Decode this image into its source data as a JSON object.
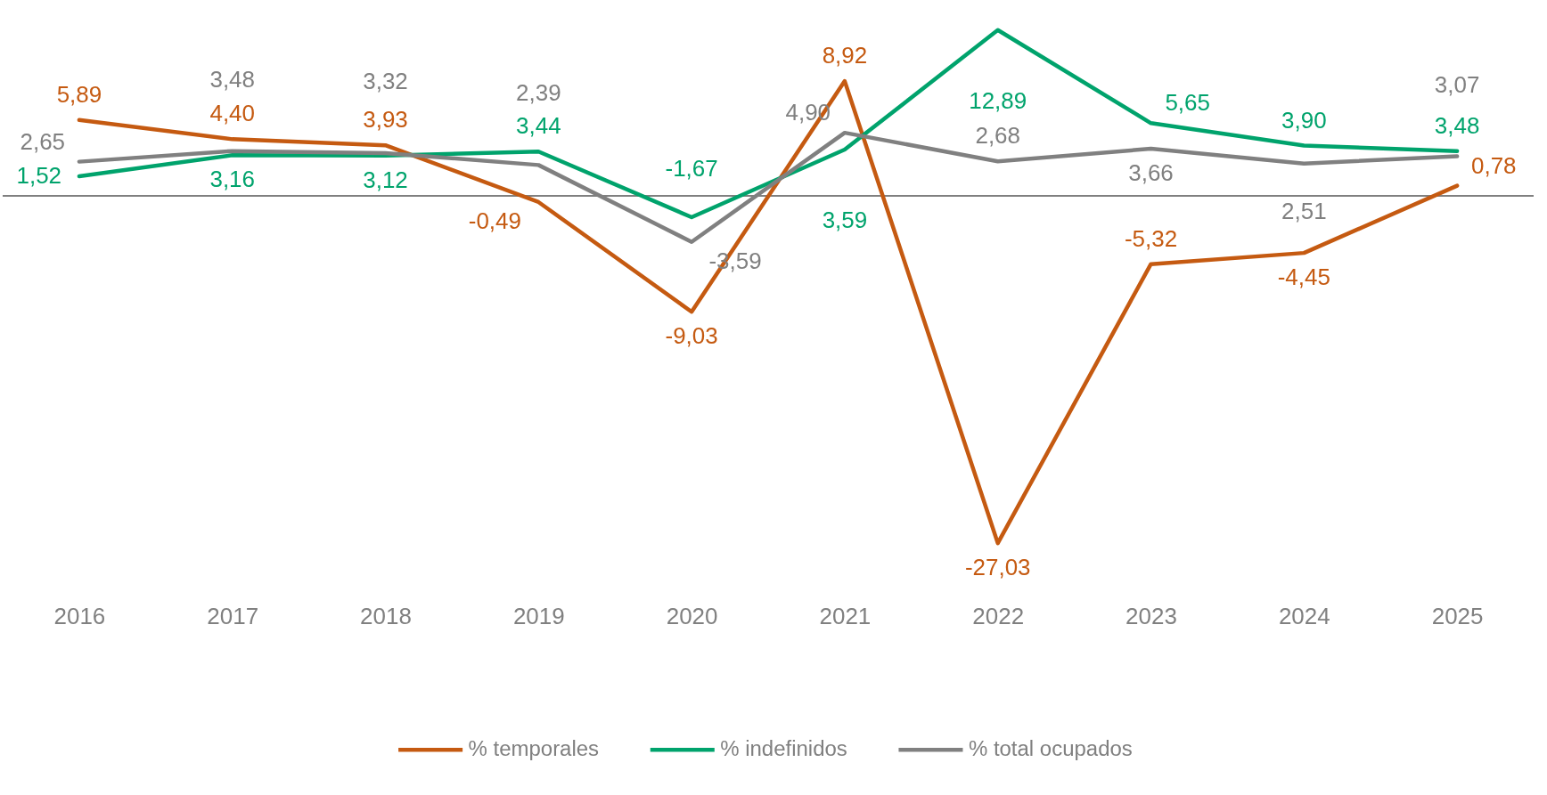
{
  "chart_data": {
    "type": "line",
    "categories": [
      "2016",
      "2017",
      "2018",
      "2019",
      "2020",
      "2021",
      "2022",
      "2023",
      "2024",
      "2025"
    ],
    "series": [
      {
        "name": "% temporales",
        "color": "#c55a11",
        "values": [
          5.89,
          4.4,
          3.93,
          -0.49,
          -9.03,
          8.92,
          -27.03,
          -5.32,
          -4.45,
          0.78
        ],
        "value_labels": [
          "5,89",
          "4,40",
          "3,93",
          "-0,49",
          "-9,03",
          "8,92",
          "-27,03",
          "-5,32",
          "-4,45",
          "0,78"
        ]
      },
      {
        "name": "% indefinidos",
        "color": "#00a36c",
        "values": [
          1.52,
          3.16,
          3.12,
          3.44,
          -1.67,
          3.59,
          12.89,
          5.65,
          3.9,
          3.48
        ],
        "value_labels": [
          "1,52",
          "3,16",
          "3,12",
          "3,44",
          "-1,67",
          "3,59",
          "12,89",
          "5,65",
          "3,90",
          "3,48"
        ]
      },
      {
        "name": "% total ocupados",
        "color": "#808080",
        "values": [
          2.65,
          3.48,
          3.32,
          2.39,
          -3.59,
          4.9,
          2.68,
          3.66,
          2.51,
          3.07
        ],
        "value_labels": [
          "2,65",
          "3,48",
          "3,32",
          "2,39",
          "-3,59",
          "4,90",
          "2,68",
          "3,66",
          "2,51",
          "3,07"
        ]
      }
    ],
    "tick_labels": "x",
    "legend": "bottom",
    "line_style": "solid"
  }
}
